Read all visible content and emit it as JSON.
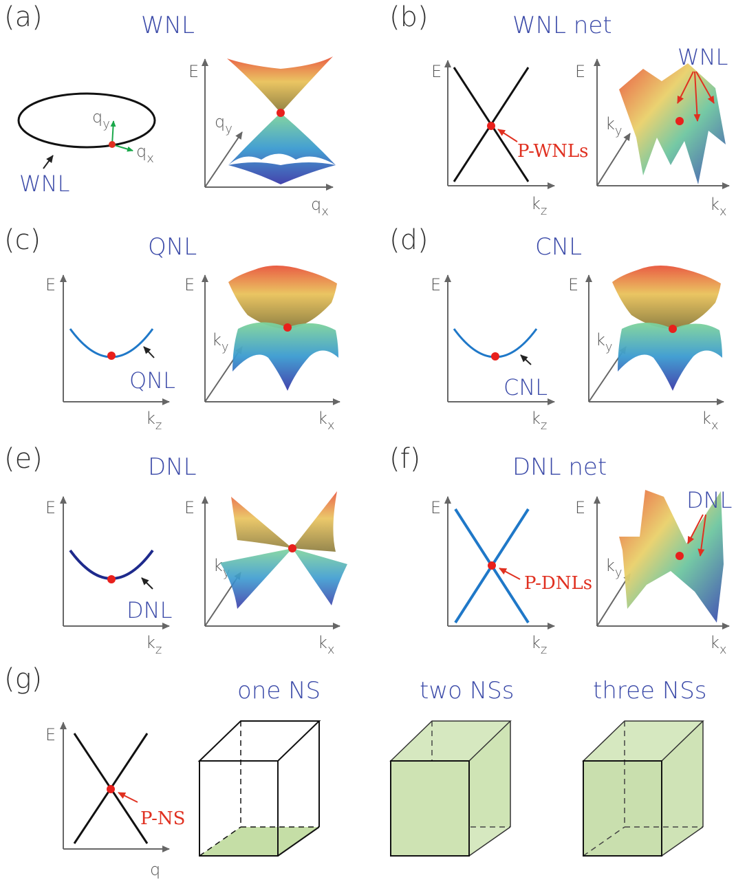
{
  "panels": {
    "a": {
      "label": "(a)",
      "title": "WNL",
      "ring_label": "WNL",
      "qy": "q",
      "qy_sub": "y",
      "qx": "q",
      "qx_sub": "x",
      "axis_E": "E",
      "axis_qy": "q",
      "axis_qy_sub": "y",
      "axis_qx": "q",
      "axis_qx_sub": "x"
    },
    "b": {
      "label": "(b)",
      "title": "WNL net",
      "axis_E": "E",
      "axis_kz": "k",
      "axis_kz_sub": "z",
      "point_label": "P-WNLs",
      "surface_label": "WNL",
      "axis_E2": "E",
      "axis_ky": "k",
      "axis_ky_sub": "y",
      "axis_kx": "k",
      "axis_kx_sub": "x"
    },
    "c": {
      "label": "(c)",
      "title": "QNL",
      "axis_E": "E",
      "axis_kz": "k",
      "axis_kz_sub": "z",
      "curve_label": "QNL",
      "axis_E2": "E",
      "axis_ky": "k",
      "axis_ky_sub": "y",
      "axis_kx": "k",
      "axis_kx_sub": "x"
    },
    "d": {
      "label": "(d)",
      "title": "CNL",
      "axis_E": "E",
      "axis_kz": "k",
      "axis_kz_sub": "z",
      "curve_label": "CNL",
      "axis_E2": "E",
      "axis_ky": "k",
      "axis_ky_sub": "y",
      "axis_kx": "k",
      "axis_kx_sub": "x"
    },
    "e": {
      "label": "(e)",
      "title": "DNL",
      "axis_E": "E",
      "axis_kz": "k",
      "axis_kz_sub": "z",
      "curve_label": "DNL",
      "axis_E2": "E",
      "axis_ky": "k",
      "axis_ky_sub": "y",
      "axis_kx": "k",
      "axis_kx_sub": "x"
    },
    "f": {
      "label": "(f)",
      "title": "DNL net",
      "axis_E": "E",
      "axis_kz": "k",
      "axis_kz_sub": "z",
      "point_label": "P-DNLs",
      "surface_label": "DNL",
      "axis_E2": "E",
      "axis_ky": "k",
      "axis_ky_sub": "y",
      "axis_kx": "k",
      "axis_kx_sub": "x"
    },
    "g": {
      "label": "(g)",
      "axis_E": "E",
      "axis_q": "q",
      "point_label": "P-NS",
      "cube1": "one NS",
      "cube2": "two NSs",
      "cube3": "three NSs"
    }
  },
  "colors": {
    "title": "#3b4aa8",
    "red": "#e03020",
    "curve_blue": "#1f78c8",
    "curve_navy": "#1e2a8c",
    "face_green": "#c5dea6"
  }
}
